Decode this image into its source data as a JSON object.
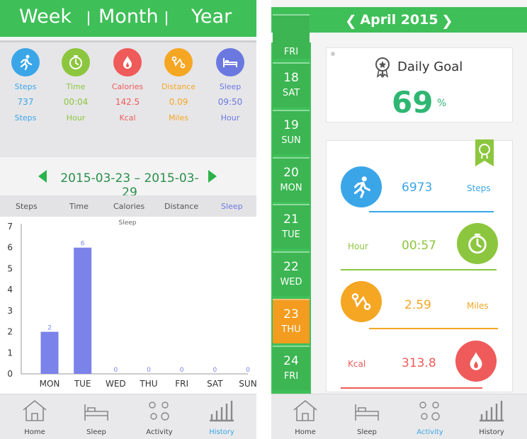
{
  "colors": {
    "green": "#3fbf58",
    "steps": "#3aa6e8",
    "time": "#8cc63e",
    "calories": "#ef5a5a",
    "distance": "#f5a623",
    "sleep": "#6b78e0",
    "bar": "#7b82ea",
    "active_day": "#f39c1f"
  },
  "left": {
    "tabs": {
      "week": "Week",
      "month": "Month",
      "year": "Year"
    },
    "stats": [
      {
        "key": "steps",
        "icon": "running-icon",
        "label": "Steps",
        "value": "737",
        "unit": "Steps"
      },
      {
        "key": "time",
        "icon": "stopwatch-icon",
        "label": "Time",
        "value": "00:04",
        "unit": "Hour"
      },
      {
        "key": "calories",
        "icon": "flame-icon",
        "label": "Calories",
        "value": "142.5",
        "unit": "Kcal"
      },
      {
        "key": "distance",
        "icon": "route-icon",
        "label": "Distance",
        "value": "0.09",
        "unit": "Miles"
      },
      {
        "key": "sleep",
        "icon": "bed-icon",
        "label": "Sleep",
        "value": "09:50",
        "unit": "Hour"
      }
    ],
    "date_range": "2015-03-23 – 2015-03-29",
    "metric_tabs": [
      "Steps",
      "Time",
      "Calories",
      "Distance",
      "Sleep"
    ],
    "nav": [
      {
        "icon": "home-icon",
        "label": "Home"
      },
      {
        "icon": "bed-icon",
        "label": "Sleep"
      },
      {
        "icon": "activity-icon",
        "label": "Activity"
      },
      {
        "icon": "history-icon",
        "label": "History"
      }
    ]
  },
  "chart_data": {
    "type": "bar",
    "title": "Sleep",
    "categories": [
      "MON",
      "TUE",
      "WED",
      "THU",
      "FRI",
      "SAT",
      "SUN"
    ],
    "values": [
      2,
      6,
      0,
      0,
      0,
      0,
      0
    ],
    "ylim": [
      0,
      7
    ],
    "yticks": [
      "0",
      "1",
      "2",
      "3",
      "4",
      "5",
      "6",
      "7"
    ]
  },
  "right": {
    "month_title": "April  2015",
    "days": [
      {
        "n": "18",
        "w": "SAT"
      },
      {
        "n": "19",
        "w": "SUN"
      },
      {
        "n": "20",
        "w": "MON"
      },
      {
        "n": "21",
        "w": "TUE"
      },
      {
        "n": "22",
        "w": "WED"
      },
      {
        "n": "23",
        "w": "THU"
      },
      {
        "n": "24",
        "w": "FRI"
      }
    ],
    "partial_day": "FRI",
    "active_index": 5,
    "goal_title": "Daily Goal",
    "goal_value": "69",
    "goal_unit": "%",
    "rows": [
      {
        "icon": "running-icon",
        "label": "",
        "value": "6973",
        "unit": "Steps"
      },
      {
        "icon": "stopwatch-icon",
        "label": "Hour",
        "value": "00:57",
        "unit": ""
      },
      {
        "icon": "route-icon",
        "label": "",
        "value": "2.59",
        "unit": "Miles"
      },
      {
        "icon": "flame-icon",
        "label": "Kcal",
        "value": "313.8",
        "unit": ""
      }
    ],
    "nav": [
      {
        "icon": "home-icon",
        "label": "Home"
      },
      {
        "icon": "bed-icon",
        "label": "Sleep"
      },
      {
        "icon": "activity-icon",
        "label": "Activity"
      },
      {
        "icon": "history-icon",
        "label": "History"
      }
    ]
  }
}
